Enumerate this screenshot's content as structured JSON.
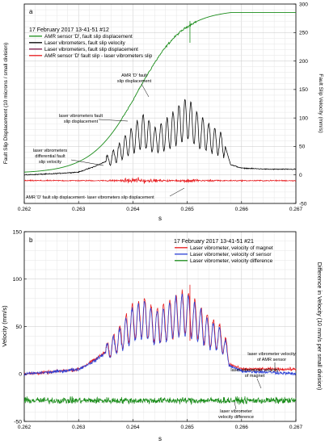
{
  "chart_data": [
    {
      "type": "line",
      "panel_letter": "a",
      "xlabel": "s",
      "ylabel_left": "Fault Slip Displacement (10 microns / small division)",
      "ylabel_right": "Fault Slip Velocity (mm/s)",
      "xlim": [
        0.262,
        0.267
      ],
      "ylim_right": [
        -50,
        300
      ],
      "x_ticks": [
        "0.262",
        "0.263",
        "0.264",
        "0.265",
        "0.266",
        "0.267"
      ],
      "y_right_ticks": [
        "-50",
        "0",
        "50",
        "100",
        "150",
        "200",
        "250",
        "300"
      ],
      "grid": true,
      "legend_header": "17 February 2017    13-41-51 #12",
      "legend": [
        {
          "name": "AMR sensor 'D', fault slip displacement",
          "color": "#1a8c1a"
        },
        {
          "name": "Laser vibrometers, fault slip velocity",
          "color": "#000000"
        },
        {
          "name": "Laser vibrometers, fault slip displacement",
          "color": "#7a1a4a"
        },
        {
          "name": "AMR sensor 'D' fault slip - laser vibrometers slip",
          "color": "#e8191c"
        }
      ],
      "annotations": [
        "AMR 'D' fault slip displacement",
        "laser vibrometers fault slip displacement",
        "laser vibrometers differential fault slip velocity",
        "AMR 'D' fault slip displacement- laser vibrometers slip displacement"
      ],
      "series": [
        {
          "name": "AMR sensor 'D', fault slip displacement",
          "kind": "displacement_sigmoid",
          "x_start": 0.262,
          "x_end": 0.2658,
          "y_start": 5,
          "y_end": 285,
          "x_mid": 0.2641
        },
        {
          "name": "Laser vibrometers, fault slip velocity",
          "x": [
            0.262,
            0.2625,
            0.263,
            0.2633,
            0.2636,
            0.2638,
            0.264,
            0.2642,
            0.2644,
            0.2646,
            0.2648,
            0.265,
            0.2652,
            0.2654,
            0.2656,
            0.2657,
            0.2658,
            0.266,
            0.2665,
            0.267
          ],
          "y": [
            0,
            2,
            5,
            15,
            28,
            45,
            62,
            78,
            60,
            70,
            85,
            100,
            78,
            65,
            55,
            50,
            18,
            12,
            10,
            10
          ]
        },
        {
          "name": "AMR sensor 'D' fault slip - laser vibrometers slip",
          "level": -10,
          "x_burst": [
            0.2635,
            0.2657
          ]
        }
      ]
    },
    {
      "type": "line",
      "panel_letter": "b",
      "xlabel": "s",
      "ylabel_left": "Velocity (mm/s)",
      "ylabel_right": "Difference in Velocity (10 mm/s per small division)",
      "xlim": [
        0.262,
        0.267
      ],
      "ylim": [
        -50,
        150
      ],
      "x_ticks": [
        "0.262",
        "0.263",
        "0.264",
        "0.265",
        "0.266",
        "0.267"
      ],
      "y_ticks": [
        "-50",
        "0",
        "50",
        "100",
        "150"
      ],
      "grid": true,
      "legend_header": "17 February 2017    13-41-51 #21",
      "legend": [
        {
          "name": "Laser vibrometer, velocity of magnet",
          "color": "#e8191c"
        },
        {
          "name": "Laser vibrometer, velocity of sensor",
          "color": "#2a3fd6"
        },
        {
          "name": "Laser vibrometer, velocity difference",
          "color": "#1a8c1a"
        }
      ],
      "annotations": [
        "laser vibrometer velocity of AMR sensor",
        "laser vibrometer velocity of magnet",
        "laser vibrometer velocity difference"
      ],
      "series": [
        {
          "name": "Laser vibrometer, velocity of magnet",
          "x": [
            0.262,
            0.2625,
            0.263,
            0.2633,
            0.2636,
            0.2638,
            0.264,
            0.2642,
            0.2644,
            0.2646,
            0.2648,
            0.265,
            0.2652,
            0.2654,
            0.2656,
            0.2657,
            0.2658,
            0.266,
            0.2665,
            0.267
          ],
          "y": [
            0,
            2,
            5,
            15,
            28,
            40,
            55,
            60,
            50,
            55,
            62,
            65,
            55,
            45,
            38,
            30,
            10,
            5,
            5,
            5
          ]
        },
        {
          "name": "Laser vibrometer, velocity of sensor",
          "x": [
            0.262,
            0.2625,
            0.263,
            0.2633,
            0.2636,
            0.2638,
            0.264,
            0.2642,
            0.2644,
            0.2646,
            0.2648,
            0.265,
            0.2652,
            0.2654,
            0.2656,
            0.2657,
            0.2658,
            0.266,
            0.2665,
            0.267
          ],
          "y": [
            0,
            2,
            5,
            14,
            27,
            38,
            52,
            58,
            48,
            52,
            60,
            62,
            52,
            42,
            36,
            28,
            8,
            3,
            2,
            0
          ]
        },
        {
          "name": "Laser vibrometer, velocity difference",
          "level": -28
        }
      ]
    }
  ]
}
